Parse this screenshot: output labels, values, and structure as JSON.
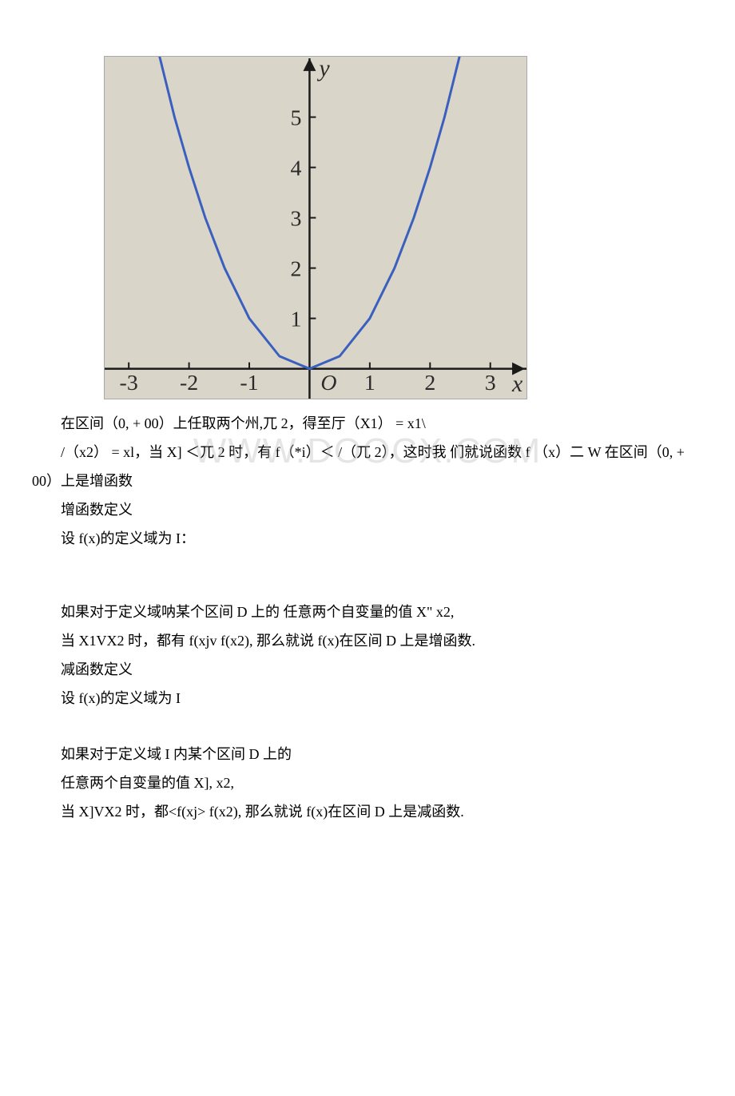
{
  "chart": {
    "type": "line",
    "background_color": "#d9d6c9",
    "curve_color": "#3a5fbf",
    "axis_color": "#1a1a1a",
    "tick_label_color": "#2a2a2a",
    "x_axis_label": "x",
    "y_axis_label": "y",
    "origin_label": "O",
    "x_ticks": [
      -3,
      -2,
      -1,
      1,
      2,
      3
    ],
    "x_tick_labels": [
      "-3",
      "-2",
      "-1",
      "1",
      "2",
      "3"
    ],
    "y_ticks": [
      1,
      2,
      3,
      4,
      5
    ],
    "y_tick_labels": [
      "1",
      "2",
      "3",
      "4",
      "5"
    ],
    "xlim": [
      -3.4,
      3.6
    ],
    "ylim": [
      -0.6,
      6.2
    ],
    "curve_points_x": [
      -2.55,
      -2.24,
      -2.0,
      -1.73,
      -1.41,
      -1.0,
      -0.5,
      0,
      0.5,
      1.0,
      1.41,
      1.73,
      2.0,
      2.24,
      2.55
    ],
    "curve_points_y": [
      6.5,
      5.0,
      4.0,
      3.0,
      2.0,
      1.0,
      0.25,
      0,
      0.25,
      1.0,
      2.0,
      3.0,
      4.0,
      5.0,
      6.5
    ],
    "line_width": 3,
    "tick_fontsize": 28,
    "axis_label_fontsize": 30,
    "axis_label_style": "italic"
  },
  "watermark": "WWW.DOOCX.COM",
  "p1": "在区间（0, + 00）上任取两个州,兀 2，得至厅（X1） = x1\\",
  "p2": "/（x2） = xl，当 X] ＜兀 2 时，有 f（*i）＜ /（兀 2），这时我 们就说函数 f （x）二 W 在区间（0, + 00）上是增函数",
  "p3": "增函数定义",
  "p4": "设 f(x)的定义域为 I：",
  "p5": "如果对于定义域呐某个区间 D 上的 任意两个自变量的值 X\" x2,",
  "p6": "当 X1VX2 时，都有 f(xjv f(x2), 那么就说 f(x)在区间 D 上是增函数.",
  "p7": "减函数定义",
  "p8": "设 f(x)的定义域为 I",
  "p9": "如果对于定义域 I 内某个区间 D 上的",
  "p10": "任意两个自变量的值 X], x2,",
  "p11": "当 X]VX2 时，都<f(xj> f(x2), 那么就说 f(x)在区间 D 上是减函数."
}
